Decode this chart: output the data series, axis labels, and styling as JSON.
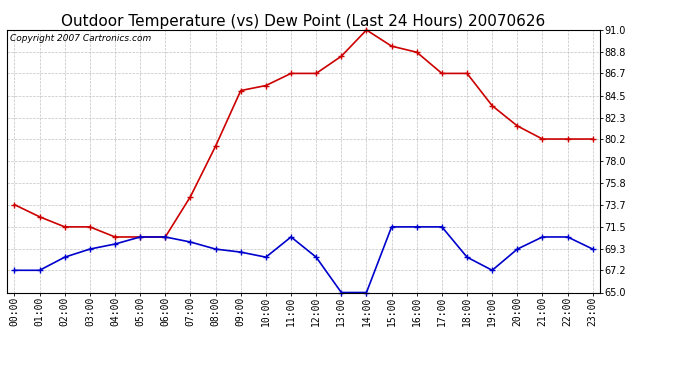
{
  "title": "Outdoor Temperature (vs) Dew Point (Last 24 Hours) 20070626",
  "copyright": "Copyright 2007 Cartronics.com",
  "hours": [
    "00:00",
    "01:00",
    "02:00",
    "03:00",
    "04:00",
    "05:00",
    "06:00",
    "07:00",
    "08:00",
    "09:00",
    "10:00",
    "11:00",
    "12:00",
    "13:00",
    "14:00",
    "15:00",
    "16:00",
    "17:00",
    "18:00",
    "19:00",
    "20:00",
    "21:00",
    "22:00",
    "23:00"
  ],
  "temp": [
    73.7,
    72.5,
    71.5,
    71.5,
    70.5,
    70.5,
    70.5,
    74.5,
    79.5,
    85.0,
    85.5,
    86.7,
    86.7,
    88.4,
    91.0,
    89.4,
    88.8,
    86.7,
    86.7,
    83.5,
    81.5,
    80.2,
    80.2,
    80.2
  ],
  "dew": [
    67.2,
    67.2,
    68.5,
    69.3,
    69.8,
    70.5,
    70.5,
    70.0,
    69.3,
    69.0,
    68.5,
    70.5,
    68.5,
    65.0,
    65.0,
    71.5,
    71.5,
    71.5,
    68.5,
    67.2,
    69.3,
    70.5,
    70.5,
    69.3
  ],
  "temp_color": "#cc0000",
  "dew_color": "#0000cc",
  "bg_color": "#ffffff",
  "plot_bg_color": "#ffffff",
  "grid_color": "#bbbbbb",
  "ylim": [
    65.0,
    91.0
  ],
  "yticks": [
    65.0,
    67.2,
    69.3,
    71.5,
    73.7,
    75.8,
    78.0,
    80.2,
    82.3,
    84.5,
    86.7,
    88.8,
    91.0
  ],
  "title_fontsize": 11,
  "copyright_fontsize": 6.5,
  "tick_fontsize": 7,
  "marker": "+",
  "markersize": 4,
  "linewidth": 1.2
}
